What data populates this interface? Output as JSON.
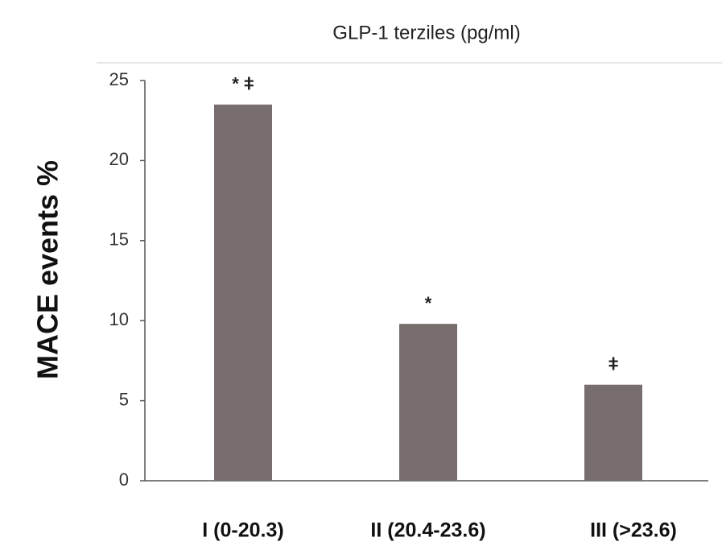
{
  "chart_data": {
    "type": "bar",
    "title": "GLP-1 terziles (pg/ml)",
    "y_label": "MACE events %",
    "categories": [
      "I (0-20.3)",
      "II (20.4-23.6)",
      "III (>23.6)"
    ],
    "values": [
      23.5,
      9.8,
      6.0
    ],
    "annotations": [
      "* ǂ",
      "*",
      "ǂ"
    ],
    "color": "#776e6d",
    "ylim": [
      0,
      25
    ],
    "yticks": [
      0,
      5,
      10,
      15,
      20,
      25
    ],
    "grid": false
  }
}
